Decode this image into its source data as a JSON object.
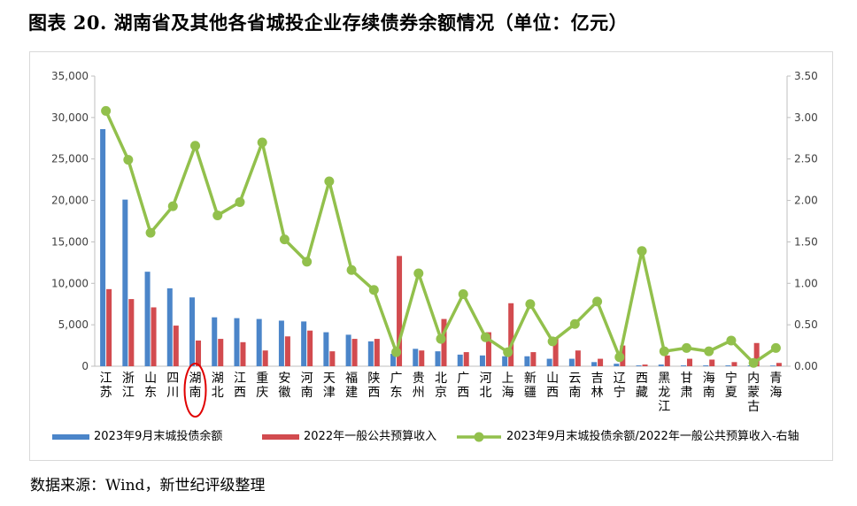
{
  "title": "图表 20. 湖南省及其他各省城投企业存续债券余额情况（单位：亿元）",
  "source": "数据来源：Wind，新世纪评级整理",
  "colors": {
    "bar1": "#4b85c9",
    "bar2": "#d24b4f",
    "line": "#92c04c",
    "highlight": "#e00000",
    "grid": "#d9d9d9"
  },
  "chart_data": {
    "type": "bar",
    "categories": [
      "江苏",
      "浙江",
      "山东",
      "四川",
      "湖南",
      "湖北",
      "江西",
      "重庆",
      "安徽",
      "河南",
      "天津",
      "福建",
      "陕西",
      "广东",
      "贵州",
      "北京",
      "广西",
      "河北",
      "上海",
      "新疆",
      "山西",
      "云南",
      "吉林",
      "辽宁",
      "西藏",
      "黑龙江",
      "甘肃",
      "海南",
      "宁夏",
      "内蒙古",
      "青海"
    ],
    "highlight_category": "湖南",
    "series": [
      {
        "name": "2023年9月末城投债余额",
        "type": "bar",
        "axis": "left",
        "values": [
          28600,
          20100,
          11400,
          9400,
          8300,
          5900,
          5800,
          5700,
          5500,
          5400,
          4100,
          3800,
          3000,
          1500,
          2100,
          1800,
          1400,
          1300,
          1200,
          1200,
          900,
          900,
          500,
          300,
          100,
          200,
          100,
          100,
          100,
          100,
          80
        ]
      },
      {
        "name": "2022年一般公共预算收入",
        "type": "bar",
        "axis": "left",
        "values": [
          9300,
          8100,
          7100,
          4900,
          3100,
          3300,
          2900,
          1900,
          3600,
          4300,
          1800,
          3300,
          3300,
          13300,
          1900,
          5700,
          1700,
          4100,
          7600,
          1700,
          3500,
          1900,
          900,
          2500,
          200,
          1300,
          900,
          800,
          500,
          2800,
          400
        ]
      },
      {
        "name": "2023年9月末城投债余额/2022年一般公共预算收入-右轴",
        "type": "line",
        "axis": "right",
        "values": [
          3.08,
          2.49,
          1.61,
          1.93,
          2.66,
          1.82,
          1.98,
          2.7,
          1.53,
          1.26,
          2.23,
          1.16,
          0.92,
          0.17,
          1.12,
          0.33,
          0.87,
          0.35,
          0.17,
          0.75,
          0.3,
          0.51,
          0.78,
          0.11,
          1.39,
          0.18,
          0.22,
          0.18,
          0.31,
          0.04,
          0.22
        ]
      }
    ],
    "left_axis": {
      "min": 0,
      "max": 35000,
      "ticks": [
        "0",
        "5,000",
        "10,000",
        "15,000",
        "20,000",
        "25,000",
        "30,000",
        "35,000"
      ]
    },
    "right_axis": {
      "min": 0,
      "max": 3.5,
      "ticks": [
        "0.00",
        "0.50",
        "1.00",
        "1.50",
        "2.00",
        "2.50",
        "3.00",
        "3.50"
      ]
    },
    "grid": false,
    "legend_position": "bottom"
  }
}
